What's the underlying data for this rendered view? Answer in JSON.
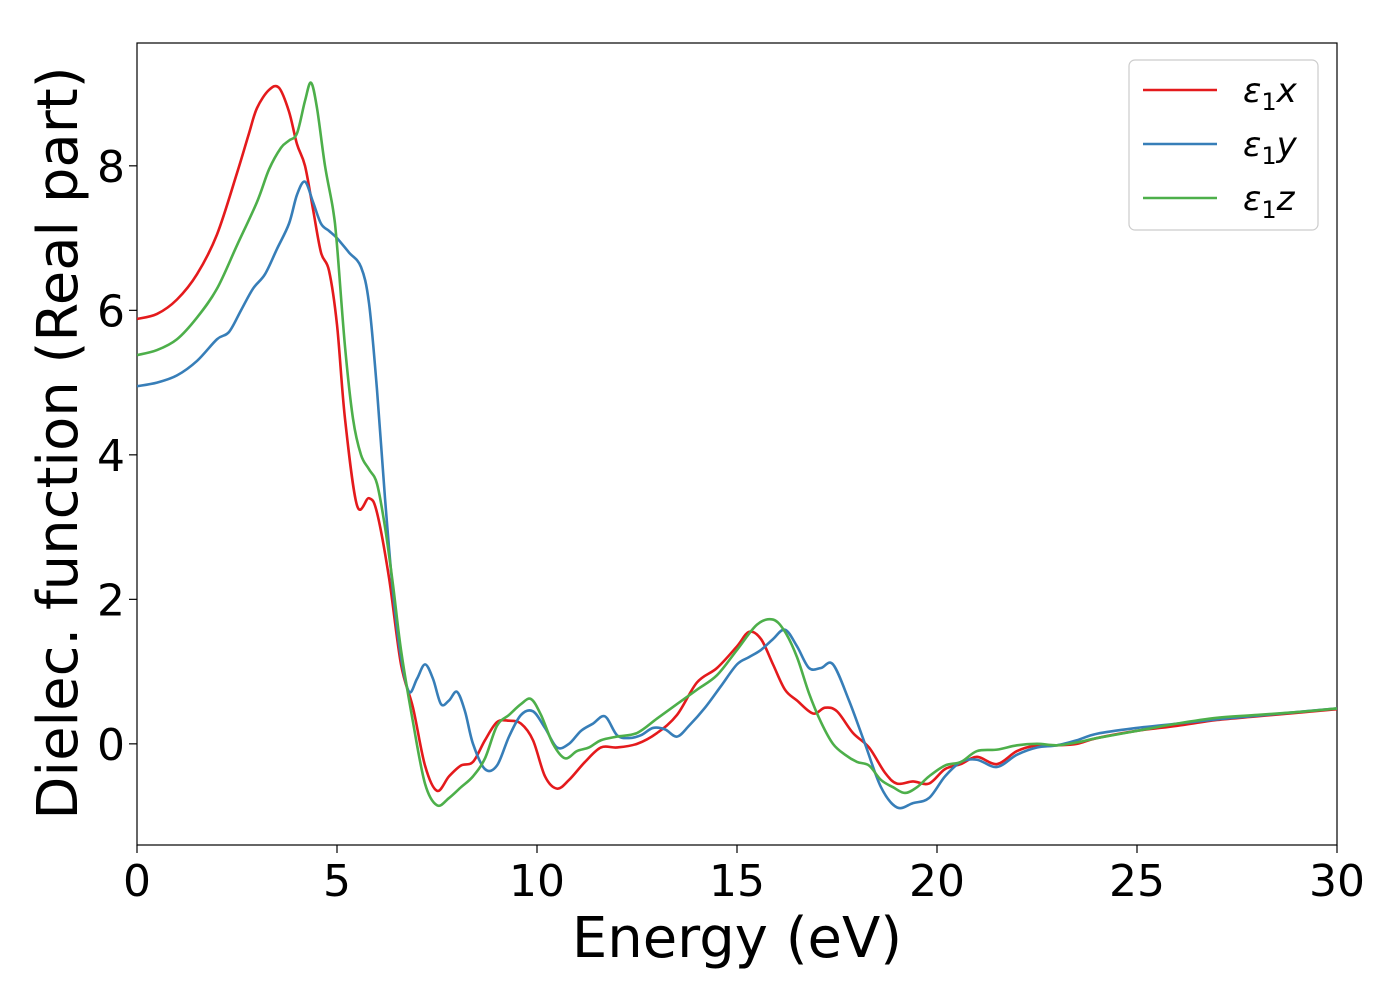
{
  "chart_data": {
    "type": "line",
    "title": "",
    "xlabel": "Energy (eV)",
    "ylabel": "Dielec. function (Real part)",
    "xlim": [
      0,
      30
    ],
    "ylim": [
      -1.4,
      9.7
    ],
    "xticks": [
      0,
      5,
      10,
      15,
      20,
      25,
      30
    ],
    "yticks": [
      0,
      2,
      4,
      6,
      8
    ],
    "grid": false,
    "legend_position": "top-right",
    "series": [
      {
        "name": "ε1x",
        "label_base": "ε",
        "label_sub": "1",
        "label_var": "x",
        "color": "#e41a1c",
        "x": [
          0,
          0.5,
          1,
          1.5,
          2,
          2.5,
          2.8,
          3,
          3.3,
          3.55,
          3.8,
          4.0,
          4.2,
          4.4,
          4.6,
          4.8,
          5.0,
          5.2,
          5.5,
          5.8,
          6.0,
          6.3,
          6.6,
          6.9,
          7.2,
          7.5,
          7.8,
          8.1,
          8.4,
          8.7,
          9.0,
          9.3,
          9.6,
          9.9,
          10.2,
          10.5,
          10.8,
          11.2,
          11.6,
          12.0,
          12.5,
          13.0,
          13.5,
          14.0,
          14.5,
          15.0,
          15.3,
          15.6,
          15.9,
          16.2,
          16.5,
          16.9,
          17.2,
          17.5,
          17.9,
          18.3,
          18.7,
          19.0,
          19.4,
          19.8,
          20.2,
          20.6,
          21.0,
          21.5,
          22.0,
          22.5,
          23.0,
          23.5,
          24.0,
          25.0,
          26.0,
          27.0,
          28.0,
          29.0,
          30.0
        ],
        "y": [
          5.88,
          5.95,
          6.15,
          6.5,
          7.05,
          7.9,
          8.45,
          8.8,
          9.05,
          9.08,
          8.75,
          8.3,
          8.0,
          7.4,
          6.8,
          6.55,
          5.8,
          4.5,
          3.3,
          3.4,
          3.2,
          2.3,
          1.1,
          0.5,
          -0.3,
          -0.65,
          -0.45,
          -0.3,
          -0.25,
          0.05,
          0.3,
          0.32,
          0.28,
          0.05,
          -0.45,
          -0.62,
          -0.5,
          -0.25,
          -0.05,
          -0.05,
          0.0,
          0.15,
          0.4,
          0.85,
          1.05,
          1.35,
          1.55,
          1.45,
          1.1,
          0.75,
          0.6,
          0.42,
          0.5,
          0.45,
          0.15,
          -0.05,
          -0.4,
          -0.55,
          -0.52,
          -0.55,
          -0.35,
          -0.28,
          -0.18,
          -0.28,
          -0.1,
          -0.02,
          -0.02,
          0.0,
          0.08,
          0.18,
          0.25,
          0.33,
          0.38,
          0.43,
          0.48
        ]
      },
      {
        "name": "ε1y",
        "label_base": "ε",
        "label_sub": "1",
        "label_var": "y",
        "color": "#377eb8",
        "x": [
          0,
          0.5,
          1,
          1.5,
          2,
          2.3,
          2.6,
          2.9,
          3.2,
          3.5,
          3.8,
          4.0,
          4.2,
          4.4,
          4.6,
          4.8,
          5.0,
          5.3,
          5.6,
          5.8,
          6.0,
          6.2,
          6.4,
          6.6,
          6.8,
          7.0,
          7.2,
          7.4,
          7.6,
          7.8,
          8.0,
          8.2,
          8.4,
          8.7,
          9.0,
          9.3,
          9.6,
          9.9,
          10.2,
          10.5,
          10.8,
          11.1,
          11.4,
          11.7,
          12.0,
          12.3,
          12.6,
          12.9,
          13.2,
          13.5,
          13.8,
          14.2,
          14.6,
          15.0,
          15.3,
          15.6,
          15.9,
          16.2,
          16.5,
          16.8,
          17.1,
          17.4,
          17.8,
          18.2,
          18.6,
          19.0,
          19.4,
          19.8,
          20.2,
          20.6,
          21.0,
          21.5,
          22.0,
          22.5,
          23.0,
          23.5,
          24.0,
          25.0,
          26.0,
          27.0,
          28.0,
          29.0,
          30.0
        ],
        "y": [
          4.95,
          5.0,
          5.1,
          5.3,
          5.6,
          5.7,
          6.0,
          6.3,
          6.5,
          6.85,
          7.2,
          7.6,
          7.78,
          7.5,
          7.2,
          7.1,
          7.0,
          6.8,
          6.6,
          6.1,
          4.9,
          3.4,
          2.1,
          1.2,
          0.72,
          0.9,
          1.1,
          0.9,
          0.55,
          0.6,
          0.72,
          0.45,
          0.0,
          -0.35,
          -0.3,
          0.1,
          0.4,
          0.45,
          0.22,
          -0.05,
          0.0,
          0.18,
          0.28,
          0.38,
          0.12,
          0.08,
          0.12,
          0.22,
          0.2,
          0.1,
          0.25,
          0.5,
          0.8,
          1.1,
          1.2,
          1.3,
          1.45,
          1.58,
          1.35,
          1.05,
          1.05,
          1.1,
          0.6,
          0.0,
          -0.6,
          -0.88,
          -0.82,
          -0.75,
          -0.45,
          -0.25,
          -0.22,
          -0.32,
          -0.15,
          -0.05,
          -0.02,
          0.05,
          0.14,
          0.22,
          0.28,
          0.34,
          0.39,
          0.44,
          0.49
        ]
      },
      {
        "name": "ε1z",
        "label_base": "ε",
        "label_sub": "1",
        "label_var": "z",
        "color": "#4daf4a",
        "x": [
          0,
          0.5,
          1,
          1.5,
          2,
          2.5,
          3.0,
          3.3,
          3.6,
          3.8,
          4.0,
          4.2,
          4.35,
          4.5,
          4.7,
          4.9,
          5.0,
          5.2,
          5.4,
          5.6,
          5.8,
          6.0,
          6.2,
          6.4,
          6.6,
          6.9,
          7.2,
          7.5,
          7.8,
          8.1,
          8.4,
          8.7,
          9.0,
          9.3,
          9.6,
          9.85,
          10.1,
          10.4,
          10.7,
          11.0,
          11.3,
          11.6,
          12.0,
          12.5,
          13.0,
          13.5,
          14.0,
          14.5,
          15.0,
          15.5,
          15.9,
          16.2,
          16.5,
          16.8,
          17.1,
          17.4,
          17.7,
          18.0,
          18.3,
          18.6,
          18.9,
          19.2,
          19.5,
          19.8,
          20.2,
          20.6,
          21.0,
          21.5,
          22.0,
          22.5,
          23.0,
          23.5,
          24.0,
          25.0,
          26.0,
          27.0,
          28.0,
          29.0,
          30.0
        ],
        "y": [
          5.38,
          5.45,
          5.6,
          5.9,
          6.3,
          6.9,
          7.5,
          7.95,
          8.25,
          8.35,
          8.45,
          8.9,
          9.15,
          8.8,
          8.0,
          7.4,
          6.9,
          5.5,
          4.5,
          4.0,
          3.8,
          3.6,
          3.0,
          2.2,
          1.3,
          0.3,
          -0.55,
          -0.85,
          -0.75,
          -0.6,
          -0.45,
          -0.2,
          0.25,
          0.4,
          0.55,
          0.62,
          0.4,
          0.0,
          -0.2,
          -0.1,
          -0.05,
          0.05,
          0.1,
          0.15,
          0.35,
          0.55,
          0.75,
          0.95,
          1.3,
          1.65,
          1.72,
          1.55,
          1.2,
          0.7,
          0.3,
          0.0,
          -0.15,
          -0.25,
          -0.3,
          -0.5,
          -0.6,
          -0.68,
          -0.6,
          -0.45,
          -0.3,
          -0.25,
          -0.1,
          -0.08,
          -0.02,
          0.0,
          -0.02,
          0.02,
          0.08,
          0.18,
          0.28,
          0.36,
          0.4,
          0.44,
          0.49
        ]
      }
    ]
  }
}
